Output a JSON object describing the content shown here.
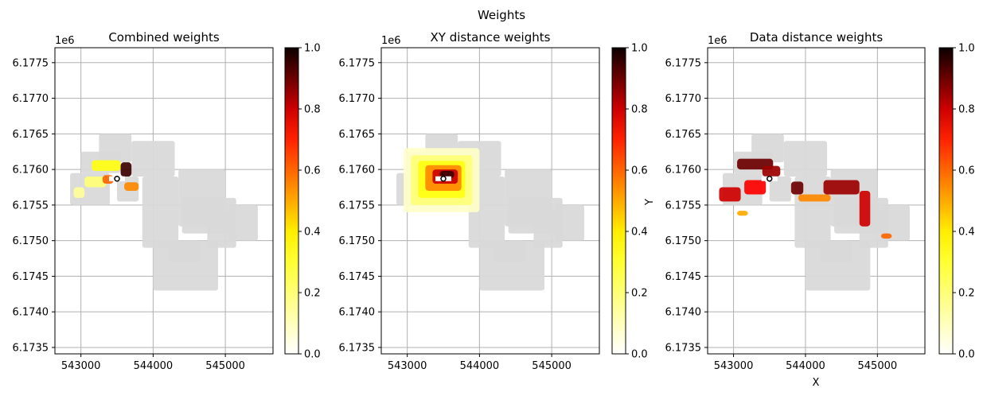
{
  "figure": {
    "suptitle": "Weights"
  },
  "chart_data": [
    {
      "type": "heatmap",
      "title": "Combined weights",
      "offset_label": "1e6",
      "xlabel": "",
      "ylabel": "",
      "xlim": [
        542640,
        545660
      ],
      "ylim": [
        6.17341,
        6.17771
      ],
      "xticks": [
        543000,
        544000,
        545000
      ],
      "xtick_labels": [
        "543000",
        "544000",
        "545000"
      ],
      "yticks": [
        6.1735,
        6.174,
        6.1745,
        6.175,
        6.1755,
        6.176,
        6.1765,
        6.177,
        6.1775
      ],
      "ytick_labels": [
        "6.1735",
        "6.1740",
        "6.1745",
        "6.1750",
        "6.1755",
        "6.1760",
        "6.1765",
        "6.1770",
        "6.1775"
      ],
      "grid": true,
      "colorbar": {
        "cmap": "hot_r",
        "range": [
          0,
          1
        ],
        "ticks": [
          0.0,
          0.2,
          0.4,
          0.6,
          0.8,
          1.0
        ],
        "tick_labels": [
          "0.0",
          "0.2",
          "0.4",
          "0.6",
          "0.8",
          "1.0"
        ]
      },
      "center_point": [
        543500,
        6.17587
      ],
      "weight_zones": [
        {
          "x": [
            543150,
            543550
          ],
          "y": [
            6.17598,
            6.17613
          ],
          "weight": 0.35
        },
        {
          "x": [
            543550,
            543700
          ],
          "y": [
            6.1759,
            6.1761
          ],
          "weight": 0.95
        },
        {
          "x": [
            543050,
            543350
          ],
          "y": [
            6.17575,
            6.1759
          ],
          "weight": 0.2
        },
        {
          "x": [
            543300,
            543450
          ],
          "y": [
            6.1758,
            6.17592
          ],
          "weight": 0.6
        },
        {
          "x": [
            543600,
            543800
          ],
          "y": [
            6.1757,
            6.17582
          ],
          "weight": 0.55
        },
        {
          "x": [
            542900,
            543050
          ],
          "y": [
            6.1756,
            6.17575
          ],
          "weight": 0.15
        }
      ]
    },
    {
      "type": "heatmap",
      "title": "XY distance weights",
      "offset_label": "1e6",
      "xlabel": "",
      "ylabel": "Y",
      "xlim": [
        542640,
        545660
      ],
      "ylim": [
        6.17341,
        6.17771
      ],
      "xticks": [
        543000,
        544000,
        545000
      ],
      "xtick_labels": [
        "543000",
        "544000",
        "545000"
      ],
      "yticks": [
        6.1735,
        6.174,
        6.1745,
        6.175,
        6.1755,
        6.176,
        6.1765,
        6.177,
        6.1775
      ],
      "ytick_labels": [
        "6.1735",
        "6.1740",
        "6.1745",
        "6.1750",
        "6.1755",
        "6.1760",
        "6.1765",
        "6.1770",
        "6.1775"
      ],
      "grid": true,
      "colorbar": {
        "cmap": "hot_r",
        "range": [
          0,
          1
        ],
        "ticks": [
          0.0,
          0.2,
          0.4,
          0.6,
          0.8,
          1.0
        ],
        "tick_labels": [
          "0.0",
          "0.2",
          "0.4",
          "0.6",
          "0.8",
          "1.0"
        ]
      },
      "center_point": [
        543500,
        6.17587
      ],
      "weight_zones": [
        {
          "x": [
            542950,
            544000
          ],
          "y": [
            6.1754,
            6.1763
          ],
          "weight": 0.08
        },
        {
          "x": [
            543050,
            543900
          ],
          "y": [
            6.1755,
            6.1762
          ],
          "weight": 0.2
        },
        {
          "x": [
            543150,
            543800
          ],
          "y": [
            6.1756,
            6.17612
          ],
          "weight": 0.35
        },
        {
          "x": [
            543250,
            543750
          ],
          "y": [
            6.1757,
            6.17606
          ],
          "weight": 0.55
        },
        {
          "x": [
            543350,
            543700
          ],
          "y": [
            6.1758,
            6.176
          ],
          "weight": 0.8
        },
        {
          "x": [
            543450,
            543650
          ],
          "y": [
            6.17588,
            6.17598
          ],
          "weight": 0.95
        }
      ]
    },
    {
      "type": "heatmap",
      "title": "Data distance weights",
      "offset_label": "1e6",
      "xlabel": "X",
      "ylabel": "",
      "xlim": [
        542640,
        545660
      ],
      "ylim": [
        6.17341,
        6.17771
      ],
      "xticks": [
        543000,
        544000,
        545000
      ],
      "xtick_labels": [
        "543000",
        "544000",
        "545000"
      ],
      "yticks": [
        6.1735,
        6.174,
        6.1745,
        6.175,
        6.1755,
        6.176,
        6.1765,
        6.177,
        6.1775
      ],
      "ytick_labels": [
        "6.1735",
        "6.1740",
        "6.1745",
        "6.1750",
        "6.1755",
        "6.1760",
        "6.1765",
        "6.1770",
        "6.1775"
      ],
      "grid": true,
      "colorbar": {
        "cmap": "hot_r",
        "range": [
          0,
          1
        ],
        "ticks": [
          0.0,
          0.2,
          0.4,
          0.6,
          0.8,
          1.0
        ],
        "tick_labels": [
          "0.0",
          "0.2",
          "0.4",
          "0.6",
          "0.8",
          "1.0"
        ]
      },
      "center_point": [
        543500,
        6.17587
      ],
      "weight_zones": [
        {
          "x": [
            543050,
            543550
          ],
          "y": [
            6.176,
            6.17615
          ],
          "weight": 0.9
        },
        {
          "x": [
            543400,
            543650
          ],
          "y": [
            6.1759,
            6.17605
          ],
          "weight": 0.85
        },
        {
          "x": [
            542800,
            543100
          ],
          "y": [
            6.17555,
            6.17575
          ],
          "weight": 0.8
        },
        {
          "x": [
            543150,
            543450
          ],
          "y": [
            6.17565,
            6.17585
          ],
          "weight": 0.75
        },
        {
          "x": [
            543800,
            543970
          ],
          "y": [
            6.17565,
            6.17583
          ],
          "weight": 0.9
        },
        {
          "x": [
            544250,
            544750
          ],
          "y": [
            6.17565,
            6.17585
          ],
          "weight": 0.85
        },
        {
          "x": [
            544750,
            544900
          ],
          "y": [
            6.1752,
            6.1757
          ],
          "weight": 0.8
        },
        {
          "x": [
            543900,
            544350
          ],
          "y": [
            6.17555,
            6.17565
          ],
          "weight": 0.55
        },
        {
          "x": [
            545050,
            545200
          ],
          "y": [
            6.17503,
            6.1751
          ],
          "weight": 0.6
        },
        {
          "x": [
            543050,
            543200
          ],
          "y": [
            6.17535,
            6.17542
          ],
          "weight": 0.5
        }
      ]
    }
  ]
}
